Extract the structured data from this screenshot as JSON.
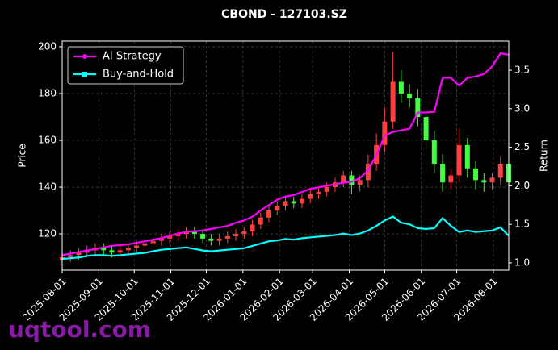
{
  "chart_data": {
    "type": "candlestick",
    "title": "CBOND - 127103.SZ",
    "ylabel": "Price",
    "y2label": "Return",
    "x": [
      "2025-08-01",
      "2025-08-08",
      "2025-08-15",
      "2025-08-22",
      "2025-08-29",
      "2025-09-05",
      "2025-09-12",
      "2025-09-19",
      "2025-09-26",
      "2025-10-03",
      "2025-10-10",
      "2025-10-17",
      "2025-10-24",
      "2025-10-31",
      "2025-11-07",
      "2025-11-14",
      "2025-11-21",
      "2025-11-28",
      "2025-12-05",
      "2025-12-12",
      "2025-12-19",
      "2025-12-26",
      "2026-01-02",
      "2026-01-09",
      "2026-01-16",
      "2026-01-23",
      "2026-01-30",
      "2026-02-06",
      "2026-02-13",
      "2026-02-20",
      "2026-02-27",
      "2026-03-06",
      "2026-03-13",
      "2026-03-20",
      "2026-03-27",
      "2026-04-03",
      "2026-04-10",
      "2026-04-17",
      "2026-04-24",
      "2026-05-01",
      "2026-05-08",
      "2026-05-15",
      "2026-05-22",
      "2026-05-29",
      "2026-06-05",
      "2026-06-12",
      "2026-06-19",
      "2026-06-26",
      "2026-07-03",
      "2026-07-10",
      "2026-07-17",
      "2026-07-24",
      "2026-07-31",
      "2026-08-07",
      "2026-08-14"
    ],
    "open": [
      109,
      110,
      111,
      112,
      113,
      114,
      113,
      112,
      113,
      114,
      115,
      116,
      117,
      118,
      119,
      120,
      121,
      120,
      118,
      117,
      118,
      119,
      120,
      121,
      124,
      127,
      130,
      132,
      134,
      133,
      135,
      137,
      138,
      140,
      142,
      145,
      141,
      143,
      150,
      158,
      168,
      185,
      180,
      178,
      170,
      160,
      150,
      142,
      145,
      158,
      148,
      143,
      142,
      144,
      150
    ],
    "high": [
      112,
      113,
      114,
      115,
      116,
      116,
      115,
      115,
      116,
      117,
      118,
      119,
      120,
      121,
      122,
      123,
      123,
      122,
      120,
      120,
      121,
      122,
      123,
      126,
      129,
      132,
      134,
      136,
      136,
      137,
      139,
      140,
      142,
      144,
      147,
      147,
      145,
      154,
      163,
      174,
      198,
      190,
      184,
      182,
      174,
      164,
      154,
      148,
      165,
      161,
      151,
      146,
      146,
      153,
      152
    ],
    "low": [
      107,
      108,
      109,
      110,
      111,
      111,
      110,
      110,
      111,
      112,
      113,
      114,
      115,
      116,
      117,
      118,
      118,
      116,
      115,
      115,
      116,
      117,
      118,
      119,
      122,
      125,
      128,
      130,
      131,
      131,
      133,
      135,
      136,
      138,
      140,
      137,
      138,
      140,
      147,
      155,
      165,
      176,
      174,
      166,
      156,
      146,
      138,
      139,
      142,
      144,
      139,
      138,
      139,
      141,
      139
    ],
    "close": [
      110,
      111,
      112,
      113,
      114,
      113,
      112,
      113,
      114,
      115,
      116,
      117,
      118,
      119,
      120,
      121,
      120,
      118,
      117,
      118,
      119,
      120,
      121,
      124,
      127,
      130,
      132,
      134,
      133,
      135,
      137,
      138,
      140,
      142,
      145,
      141,
      143,
      150,
      158,
      168,
      185,
      180,
      178,
      170,
      160,
      150,
      142,
      145,
      158,
      148,
      143,
      142,
      144,
      150,
      142
    ],
    "up_color": "#ff4040",
    "down_color": "#40ff40",
    "series": [
      {
        "name": "AI Strategy",
        "color": "#ff00ff",
        "marker": "circle",
        "axis": "y2",
        "values": [
          1.1,
          1.12,
          1.14,
          1.16,
          1.18,
          1.2,
          1.22,
          1.23,
          1.24,
          1.26,
          1.28,
          1.3,
          1.32,
          1.35,
          1.38,
          1.4,
          1.41,
          1.42,
          1.44,
          1.46,
          1.48,
          1.52,
          1.55,
          1.6,
          1.68,
          1.75,
          1.82,
          1.86,
          1.88,
          1.92,
          1.96,
          1.98,
          2.0,
          2.02,
          2.04,
          2.05,
          2.1,
          2.2,
          2.4,
          2.65,
          2.7,
          2.72,
          2.74,
          2.95,
          2.95,
          2.96,
          3.4,
          3.4,
          3.3,
          3.4,
          3.42,
          3.45,
          3.55,
          3.72,
          3.7
        ]
      },
      {
        "name": "Buy-and-Hold",
        "color": "#00ffff",
        "marker": "square",
        "axis": "y2",
        "values": [
          1.05,
          1.06,
          1.07,
          1.09,
          1.1,
          1.1,
          1.09,
          1.1,
          1.11,
          1.12,
          1.13,
          1.15,
          1.17,
          1.18,
          1.19,
          1.2,
          1.18,
          1.16,
          1.15,
          1.16,
          1.17,
          1.18,
          1.19,
          1.22,
          1.25,
          1.28,
          1.29,
          1.31,
          1.3,
          1.32,
          1.33,
          1.34,
          1.35,
          1.36,
          1.38,
          1.36,
          1.38,
          1.42,
          1.48,
          1.55,
          1.6,
          1.52,
          1.5,
          1.45,
          1.44,
          1.45,
          1.58,
          1.48,
          1.4,
          1.42,
          1.4,
          1.41,
          1.42,
          1.46,
          1.35
        ]
      }
    ],
    "xlim": [
      "2025-08-01",
      "2026-08-14"
    ],
    "xticks": [
      "2025-08-01",
      "2025-09-01",
      "2025-10-01",
      "2025-11-01",
      "2025-12-01",
      "2026-01-01",
      "2026-02-01",
      "2026-03-01",
      "2026-04-01",
      "2026-05-01",
      "2026-06-01",
      "2026-07-01",
      "2026-08-01"
    ],
    "ylim": [
      104.5,
      202.4
    ],
    "yticks": [
      120,
      140,
      160,
      180,
      200
    ],
    "y2lim": [
      0.905,
      3.877
    ],
    "y2ticks": [
      {
        "value": 1,
        "label": "1.0"
      },
      1.5,
      {
        "value": 2,
        "label": "2.0"
      },
      2.5,
      {
        "value": 3,
        "label": "3.0"
      },
      3.5
    ],
    "grid": true,
    "legend": "upper left"
  },
  "watermark": "uqtool.com"
}
